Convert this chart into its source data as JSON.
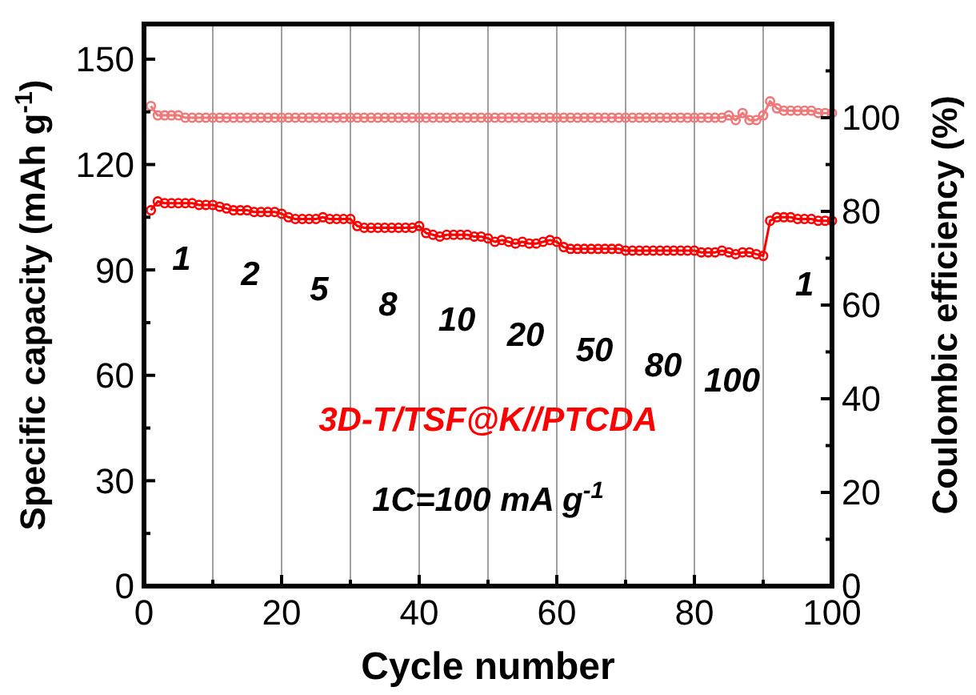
{
  "chart_data": {
    "type": "line",
    "xlabel": "Cycle number",
    "ylabel": "Specific capacity (mAh g$^{-1}$)",
    "y2label": "Coulombic efficiency (%)",
    "x": [
      1,
      2,
      3,
      4,
      5,
      6,
      7,
      8,
      9,
      10,
      11,
      12,
      13,
      14,
      15,
      16,
      17,
      18,
      19,
      20,
      21,
      22,
      23,
      24,
      25,
      26,
      27,
      28,
      29,
      30,
      31,
      32,
      33,
      34,
      35,
      36,
      37,
      38,
      39,
      40,
      41,
      42,
      43,
      44,
      45,
      46,
      47,
      48,
      49,
      50,
      51,
      52,
      53,
      54,
      55,
      56,
      57,
      58,
      59,
      60,
      61,
      62,
      63,
      64,
      65,
      66,
      67,
      68,
      69,
      70,
      71,
      72,
      73,
      74,
      75,
      76,
      77,
      78,
      79,
      80,
      81,
      82,
      83,
      84,
      85,
      86,
      87,
      88,
      89,
      90,
      91,
      92,
      93,
      94,
      95,
      96,
      97,
      98,
      99,
      100
    ],
    "series": [
      {
        "color": "#ff0000",
        "values": [
          107,
          109.5,
          109,
          109,
          109,
          109,
          109,
          108.5,
          108.5,
          108.5,
          108,
          107.5,
          107,
          107,
          107,
          106.5,
          106.5,
          106.5,
          106.5,
          106,
          105,
          104.5,
          104.5,
          104.5,
          104.5,
          105,
          104.5,
          104.5,
          104.5,
          104.5,
          102.5,
          102,
          102,
          102,
          102,
          102,
          102,
          102,
          102,
          102.5,
          100.5,
          100,
          99.5,
          100,
          100,
          100,
          100,
          99.5,
          99.5,
          99,
          98,
          98.5,
          98,
          97.5,
          98,
          97.5,
          97.5,
          98,
          98.5,
          98,
          96.5,
          96,
          96,
          96,
          96,
          96,
          96,
          96,
          96,
          95.5,
          95.5,
          95.5,
          95.5,
          95.5,
          95.5,
          95.5,
          95.5,
          95.5,
          95.5,
          95.5,
          95,
          95,
          95,
          95.5,
          95,
          94.5,
          95,
          95,
          94.5,
          94,
          104,
          105,
          105,
          105,
          104.5,
          104.5,
          104.5,
          104,
          104,
          104
        ]
      },
      {
        "color": "#f07878",
        "axis": "y2",
        "values": [
          102.5,
          100.5,
          100.5,
          100.5,
          100.5,
          100,
          100,
          100,
          100,
          100,
          100,
          100,
          100,
          100,
          100,
          100,
          100,
          100,
          100,
          100,
          100,
          100,
          100,
          100,
          100,
          100,
          100,
          100,
          100,
          100,
          100,
          100,
          100,
          100,
          100,
          100,
          100,
          100,
          100,
          100,
          100,
          100,
          100,
          100,
          100,
          100,
          100,
          100,
          100,
          100,
          100,
          100,
          100,
          100,
          100,
          100,
          100,
          100,
          100,
          100,
          100,
          100,
          100,
          100,
          100,
          100,
          100,
          100,
          100,
          100,
          100,
          100,
          100,
          100,
          100,
          100,
          100,
          100,
          100,
          100,
          100,
          100,
          100,
          100,
          100.5,
          99.5,
          101,
          99.5,
          99.5,
          100.5,
          103.5,
          102,
          101.5,
          101.5,
          101.5,
          101.5,
          101.5,
          101,
          101,
          101
        ]
      }
    ],
    "xlim": [
      0,
      100
    ],
    "xticks": [
      0,
      {
        "value": 10,
        "label": null
      },
      20,
      {
        "value": 30,
        "label": null
      },
      40,
      {
        "value": 50,
        "label": null
      },
      60,
      {
        "value": 70,
        "label": null
      },
      80,
      {
        "value": 90,
        "label": null
      },
      100
    ],
    "ylim": [
      0,
      160
    ],
    "yticks": [
      0,
      {
        "value": 15,
        "label": null
      },
      30,
      {
        "value": 45,
        "label": null
      },
      60,
      {
        "value": 75,
        "label": null
      },
      90,
      {
        "value": 105,
        "label": null
      },
      120,
      {
        "value": 135,
        "label": null
      },
      150
    ],
    "y2lim": [
      0,
      120
    ],
    "y2ticks": [
      0,
      {
        "value": 10,
        "label": null
      },
      20,
      {
        "value": 30,
        "label": null
      },
      40,
      {
        "value": 50,
        "label": null
      },
      60,
      {
        "value": 70,
        "label": null
      },
      80,
      {
        "value": 90,
        "label": null
      },
      100,
      {
        "value": 110,
        "label": null
      }
    ],
    "grid": "x",
    "marker": "circle",
    "line_style": "solid",
    "annotations": [
      "1",
      "2",
      "5",
      "8",
      "10",
      "20",
      "50",
      "80",
      "100",
      "1",
      "3D-T/TSF@K//PTCDA",
      "1C=100 mA g$^{-1}$"
    ]
  }
}
